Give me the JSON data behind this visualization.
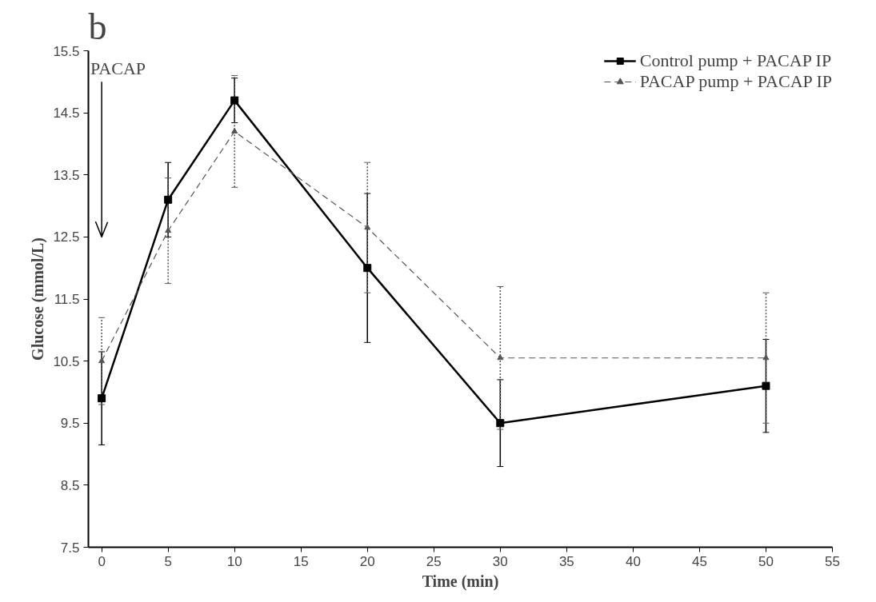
{
  "chart_data": {
    "type": "line",
    "xlabel": "Time (min)",
    "ylabel": "Glucose (mmol/L)",
    "x": [
      0,
      5,
      10,
      20,
      30,
      50
    ],
    "xlim": [
      -1,
      55
    ],
    "xticks": [
      0,
      5,
      10,
      15,
      20,
      25,
      30,
      35,
      40,
      45,
      50,
      55
    ],
    "ylim": [
      7.5,
      15.5
    ],
    "yticks": [
      7.5,
      8.5,
      9.5,
      10.5,
      11.5,
      12.5,
      13.5,
      14.5,
      15.5
    ],
    "series": [
      {
        "name": "Control pump + PACAP IP",
        "color": "#000000",
        "marker": "square",
        "line_style": "solid",
        "values": [
          9.9,
          13.1,
          14.7,
          12.0,
          9.5,
          10.1
        ],
        "errors": [
          0.75,
          0.6,
          0.36,
          1.2,
          0.7,
          0.75
        ]
      },
      {
        "name": "PACAP pump + PACAP IP",
        "color": "#555555",
        "marker": "triangle",
        "line_style": "dashed",
        "values": [
          10.5,
          12.6,
          14.2,
          12.65,
          10.55,
          10.55
        ],
        "errors": [
          0.7,
          0.85,
          0.9,
          1.05,
          1.15,
          1.05
        ]
      }
    ],
    "annotations": [
      "b"
    ],
    "ref_lines": [
      {
        "axis": "x",
        "value": 0,
        "label": "PACAP",
        "line_style": "solid"
      }
    ],
    "grid": false,
    "legend": "top right"
  }
}
